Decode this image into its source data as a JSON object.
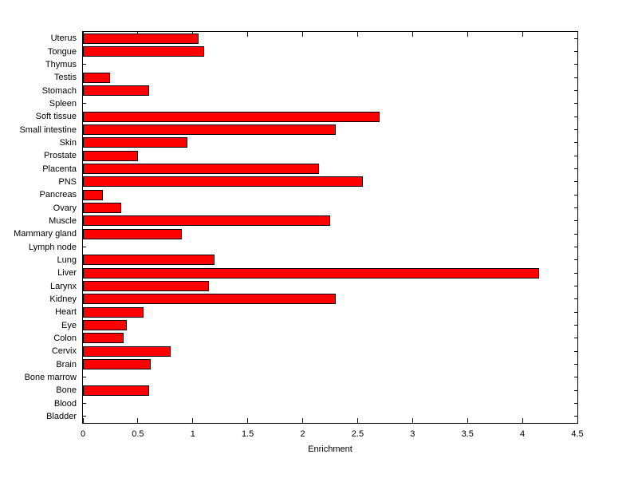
{
  "chart_data": {
    "type": "bar",
    "orientation": "horizontal",
    "title": "",
    "xlabel": "Enrichment",
    "ylabel": "",
    "xlim": [
      0,
      4.5
    ],
    "xticks": [
      0,
      0.5,
      1,
      1.5,
      2,
      2.5,
      3,
      3.5,
      4,
      4.5
    ],
    "grid": false,
    "legend": null,
    "bar_color": "#ff0000",
    "bar_edge_color": "#000000",
    "background_color": "#ffffff",
    "categories_top_to_bottom": [
      "Uterus",
      "Tongue",
      "Thymus",
      "Testis",
      "Stomach",
      "Spleen",
      "Soft tissue",
      "Small intestine",
      "Skin",
      "Prostate",
      "Placenta",
      "PNS",
      "Pancreas",
      "Ovary",
      "Muscle",
      "Mammary gland",
      "Lymph node",
      "Lung",
      "Liver",
      "Larynx",
      "Kidney",
      "Heart",
      "Eye",
      "Colon",
      "Cervix",
      "Brain",
      "Bone marrow",
      "Bone",
      "Blood",
      "Bladder"
    ],
    "values": [
      1.05,
      1.1,
      0,
      0.25,
      0.6,
      0,
      2.7,
      2.3,
      0.95,
      0.5,
      2.15,
      2.55,
      0.18,
      0.35,
      2.25,
      0.9,
      0,
      1.2,
      4.15,
      1.15,
      2.3,
      0.55,
      0.4,
      0.37,
      0.8,
      0.62,
      0,
      0.6,
      0,
      0
    ]
  }
}
